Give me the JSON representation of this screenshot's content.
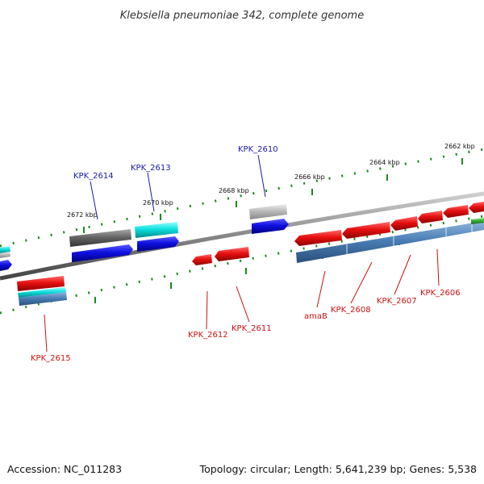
{
  "title": "Klebsiella pneumoniae 342, complete genome",
  "footer": {
    "accession": "Accession: NC_011283",
    "topology": "Topology: circular; Length: 5,641,239 bp; Genes: 5,538"
  },
  "scale_labels": [
    "2672 kbp",
    "2670 kbp",
    "2668 kbp",
    "2666 kbp",
    "2664 kbp",
    "2662 kbp"
  ],
  "gene_labels": {
    "kpk_2614": "KPK_2614",
    "kpk_2613": "KPK_2613",
    "kpk_2610": "KPK_2610",
    "kpk_2615": "KPK_2615",
    "kpk_2612": "KPK_2612",
    "kpk_2611": "KPK_2611",
    "amaB": "amaB",
    "kpk_2608": "KPK_2608",
    "kpk_2607": "KPK_2607",
    "kpk_2606": "KPK_2606"
  },
  "colors": {
    "forward_strand": "#e01010",
    "reverse_strand": "#1010e0",
    "cyan_track": "#10e0e0",
    "grey_track": "#666666",
    "steel_track": "#4a7fb5",
    "green_track": "#33aa33",
    "tick_green": "#1a8a1a",
    "backbone": "#777777"
  }
}
